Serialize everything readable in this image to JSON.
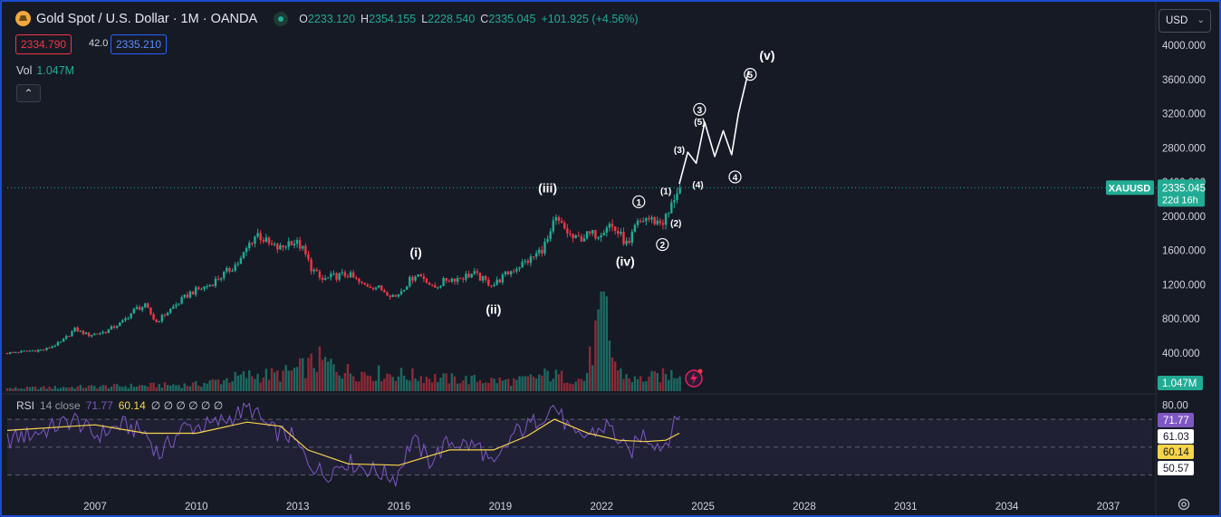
{
  "header": {
    "title": "Gold Spot / U.S. Dollar · 1M · OANDA",
    "ohlc": [
      {
        "k": "O",
        "v": "2233.120"
      },
      {
        "k": "H",
        "v": "2354.155"
      },
      {
        "k": "L",
        "v": "2228.540"
      },
      {
        "k": "C",
        "v": "2335.045"
      },
      {
        "k": "",
        "v": "+101.925 (+4.56%)"
      }
    ],
    "sell_price": "2334.790",
    "spread": "42.0",
    "buy_price": "2335.210",
    "vol_label": "Vol",
    "vol_value": "1.047M",
    "currency": "USD"
  },
  "rsi_legend": {
    "name": "RSI",
    "params": "14 close",
    "rsi": "71.77",
    "ma": "60.14",
    "extra": "∅ ∅ ∅ ∅ ∅ ∅"
  },
  "colors": {
    "up": "#22ab94",
    "down": "#f23645",
    "rsi": "#7e57c2",
    "rsi_ma": "#f7d54a",
    "annotation": "#ffffff"
  },
  "chart_data": {
    "type": "candlestick",
    "symbol": "XAUUSD",
    "last_price": "2335.045",
    "countdown": "22d 16h",
    "last_volume": "1.047M",
    "y_axis": {
      "range": [
        0,
        4000
      ],
      "ticks": [
        "4000.000",
        "3600.000",
        "3200.000",
        "2800.000",
        "2400.000",
        "2000.000",
        "1600.000",
        "1200.000",
        "800.000",
        "400.000"
      ],
      "tick_values": [
        4000,
        3600,
        3200,
        2800,
        2400,
        2000,
        1600,
        1200,
        800,
        400
      ]
    },
    "x_axis": {
      "ticks": [
        "2007",
        "2010",
        "2013",
        "2016",
        "2019",
        "2022",
        "2025",
        "2028",
        "2031",
        "2034",
        "2037"
      ],
      "tick_values": [
        2007,
        2010,
        2013,
        2016,
        2019,
        2022,
        2025,
        2028,
        2031,
        2034,
        2037
      ],
      "range": [
        2004.4,
        2038.3
      ]
    },
    "price_path": [
      [
        2004.4,
        400
      ],
      [
        2005.0,
        425
      ],
      [
        2005.5,
        440
      ],
      [
        2006.0,
        530
      ],
      [
        2006.4,
        680
      ],
      [
        2006.8,
        610
      ],
      [
        2007.3,
        650
      ],
      [
        2007.8,
        760
      ],
      [
        2008.2,
        920
      ],
      [
        2008.5,
        950
      ],
      [
        2008.8,
        760
      ],
      [
        2009.2,
        900
      ],
      [
        2009.8,
        1100
      ],
      [
        2010.4,
        1200
      ],
      [
        2010.9,
        1350
      ],
      [
        2011.3,
        1480
      ],
      [
        2011.6,
        1700
      ],
      [
        2011.8,
        1800
      ],
      [
        2012.2,
        1650
      ],
      [
        2012.5,
        1620
      ],
      [
        2012.8,
        1720
      ],
      [
        2013.1,
        1650
      ],
      [
        2013.4,
        1400
      ],
      [
        2013.7,
        1250
      ],
      [
        2014.1,
        1300
      ],
      [
        2014.5,
        1320
      ],
      [
        2014.9,
        1200
      ],
      [
        2015.3,
        1180
      ],
      [
        2015.6,
        1120
      ],
      [
        2015.9,
        1060
      ],
      [
        2016.2,
        1200
      ],
      [
        2016.5,
        1330
      ],
      [
        2016.8,
        1270
      ],
      [
        2017.0,
        1150
      ],
      [
        2017.4,
        1260
      ],
      [
        2017.8,
        1280
      ],
      [
        2018.2,
        1330
      ],
      [
        2018.6,
        1230
      ],
      [
        2018.8,
        1200
      ],
      [
        2019.1,
        1300
      ],
      [
        2019.5,
        1410
      ],
      [
        2019.9,
        1500
      ],
      [
        2020.2,
        1600
      ],
      [
        2020.5,
        1780
      ],
      [
        2020.6,
        1970
      ],
      [
        2020.9,
        1850
      ],
      [
        2021.2,
        1720
      ],
      [
        2021.5,
        1770
      ],
      [
        2021.9,
        1800
      ],
      [
        2022.2,
        1920
      ],
      [
        2022.5,
        1800
      ],
      [
        2022.8,
        1640
      ],
      [
        2023.0,
        1880
      ],
      [
        2023.3,
        1980
      ],
      [
        2023.6,
        1940
      ],
      [
        2023.8,
        1930
      ],
      [
        2024.0,
        2040
      ],
      [
        2024.2,
        2290
      ],
      [
        2024.3,
        2335
      ]
    ],
    "volume_path": [
      [
        2004.4,
        0.05
      ],
      [
        2010.0,
        0.12
      ],
      [
        2011.5,
        0.28
      ],
      [
        2012.5,
        0.3
      ],
      [
        2013.3,
        0.45
      ],
      [
        2013.6,
        0.55
      ],
      [
        2014.5,
        0.35
      ],
      [
        2016.0,
        0.3
      ],
      [
        2017.5,
        0.22
      ],
      [
        2019.5,
        0.18
      ],
      [
        2020.4,
        0.3
      ],
      [
        2021.5,
        0.2
      ],
      [
        2022.1,
        1.65
      ],
      [
        2022.2,
        0.9
      ],
      [
        2022.5,
        0.35
      ],
      [
        2023.0,
        0.2
      ],
      [
        2024.0,
        0.3
      ],
      [
        2024.3,
        0.35
      ]
    ],
    "volume_range": [
      0,
      1.8
    ],
    "rsi": {
      "range": [
        20,
        85
      ],
      "ticks": [
        "80.00"
      ],
      "tick_values": [
        80
      ],
      "bands": [
        70,
        50,
        30
      ],
      "rsi_value": "71.77",
      "ma_value": "60.14",
      "level_labels": [
        "61.03",
        "50.57"
      ],
      "level_values": [
        61.03,
        50.57
      ],
      "rsi_path": [
        [
          2004.4,
          55
        ],
        [
          2005.5,
          62
        ],
        [
          2006.4,
          70
        ],
        [
          2007.0,
          58
        ],
        [
          2007.8,
          66
        ],
        [
          2008.5,
          60
        ],
        [
          2008.9,
          44
        ],
        [
          2009.6,
          64
        ],
        [
          2010.5,
          66
        ],
        [
          2011.6,
          78
        ],
        [
          2012.2,
          62
        ],
        [
          2012.8,
          58
        ],
        [
          2013.3,
          40
        ],
        [
          2013.8,
          30
        ],
        [
          2014.4,
          40
        ],
        [
          2015.0,
          35
        ],
        [
          2015.9,
          28
        ],
        [
          2016.4,
          56
        ],
        [
          2016.9,
          40
        ],
        [
          2017.5,
          54
        ],
        [
          2018.4,
          50
        ],
        [
          2018.8,
          34
        ],
        [
          2019.4,
          60
        ],
        [
          2019.9,
          66
        ],
        [
          2020.6,
          80
        ],
        [
          2021.2,
          56
        ],
        [
          2021.7,
          60
        ],
        [
          2022.2,
          66
        ],
        [
          2022.8,
          44
        ],
        [
          2023.2,
          60
        ],
        [
          2023.8,
          50
        ],
        [
          2024.3,
          72
        ]
      ],
      "ma_path": [
        [
          2004.4,
          62
        ],
        [
          2007.0,
          66
        ],
        [
          2008.5,
          60
        ],
        [
          2010.0,
          60
        ],
        [
          2011.5,
          68
        ],
        [
          2012.5,
          65
        ],
        [
          2013.3,
          48
        ],
        [
          2014.5,
          38
        ],
        [
          2016.0,
          37
        ],
        [
          2017.5,
          48
        ],
        [
          2018.8,
          48
        ],
        [
          2019.8,
          58
        ],
        [
          2020.6,
          70
        ],
        [
          2021.6,
          60
        ],
        [
          2022.5,
          55
        ],
        [
          2023.3,
          54
        ],
        [
          2023.9,
          55
        ],
        [
          2024.3,
          60
        ]
      ]
    },
    "projection": {
      "path": [
        [
          2024.3,
          2380
        ],
        [
          2024.55,
          2750
        ],
        [
          2024.8,
          2620
        ],
        [
          2025.05,
          3100
        ],
        [
          2025.35,
          2700
        ],
        [
          2025.6,
          3000
        ],
        [
          2025.85,
          2720
        ],
        [
          2026.05,
          3200
        ],
        [
          2026.35,
          3700
        ]
      ]
    },
    "annotations": [
      {
        "text": "(i)",
        "x": 2016.5,
        "y": 1530,
        "style": "wave"
      },
      {
        "text": "(ii)",
        "x": 2018.8,
        "y": 860,
        "style": "wave"
      },
      {
        "text": "(iii)",
        "x": 2020.4,
        "y": 2280,
        "style": "wave"
      },
      {
        "text": "(iv)",
        "x": 2022.7,
        "y": 1420,
        "style": "wave"
      },
      {
        "text": "(v)",
        "x": 2026.9,
        "y": 3830,
        "style": "wave"
      },
      {
        "text": "1",
        "x": 2023.1,
        "y": 2170,
        "style": "circle"
      },
      {
        "text": "2",
        "x": 2023.8,
        "y": 1670,
        "style": "circle"
      },
      {
        "text": "3",
        "x": 2024.9,
        "y": 3250,
        "style": "circle"
      },
      {
        "text": "4",
        "x": 2025.95,
        "y": 2460,
        "style": "circle"
      },
      {
        "text": "5",
        "x": 2026.4,
        "y": 3660,
        "style": "circle"
      },
      {
        "text": "(1)",
        "x": 2023.9,
        "y": 2260,
        "style": "sub"
      },
      {
        "text": "(2)",
        "x": 2024.2,
        "y": 1880,
        "style": "sub"
      },
      {
        "text": "(3)",
        "x": 2024.3,
        "y": 2740,
        "style": "sub"
      },
      {
        "text": "(4)",
        "x": 2024.85,
        "y": 2330,
        "style": "sub"
      },
      {
        "text": "(5)",
        "x": 2024.9,
        "y": 3070,
        "style": "sub"
      }
    ]
  }
}
